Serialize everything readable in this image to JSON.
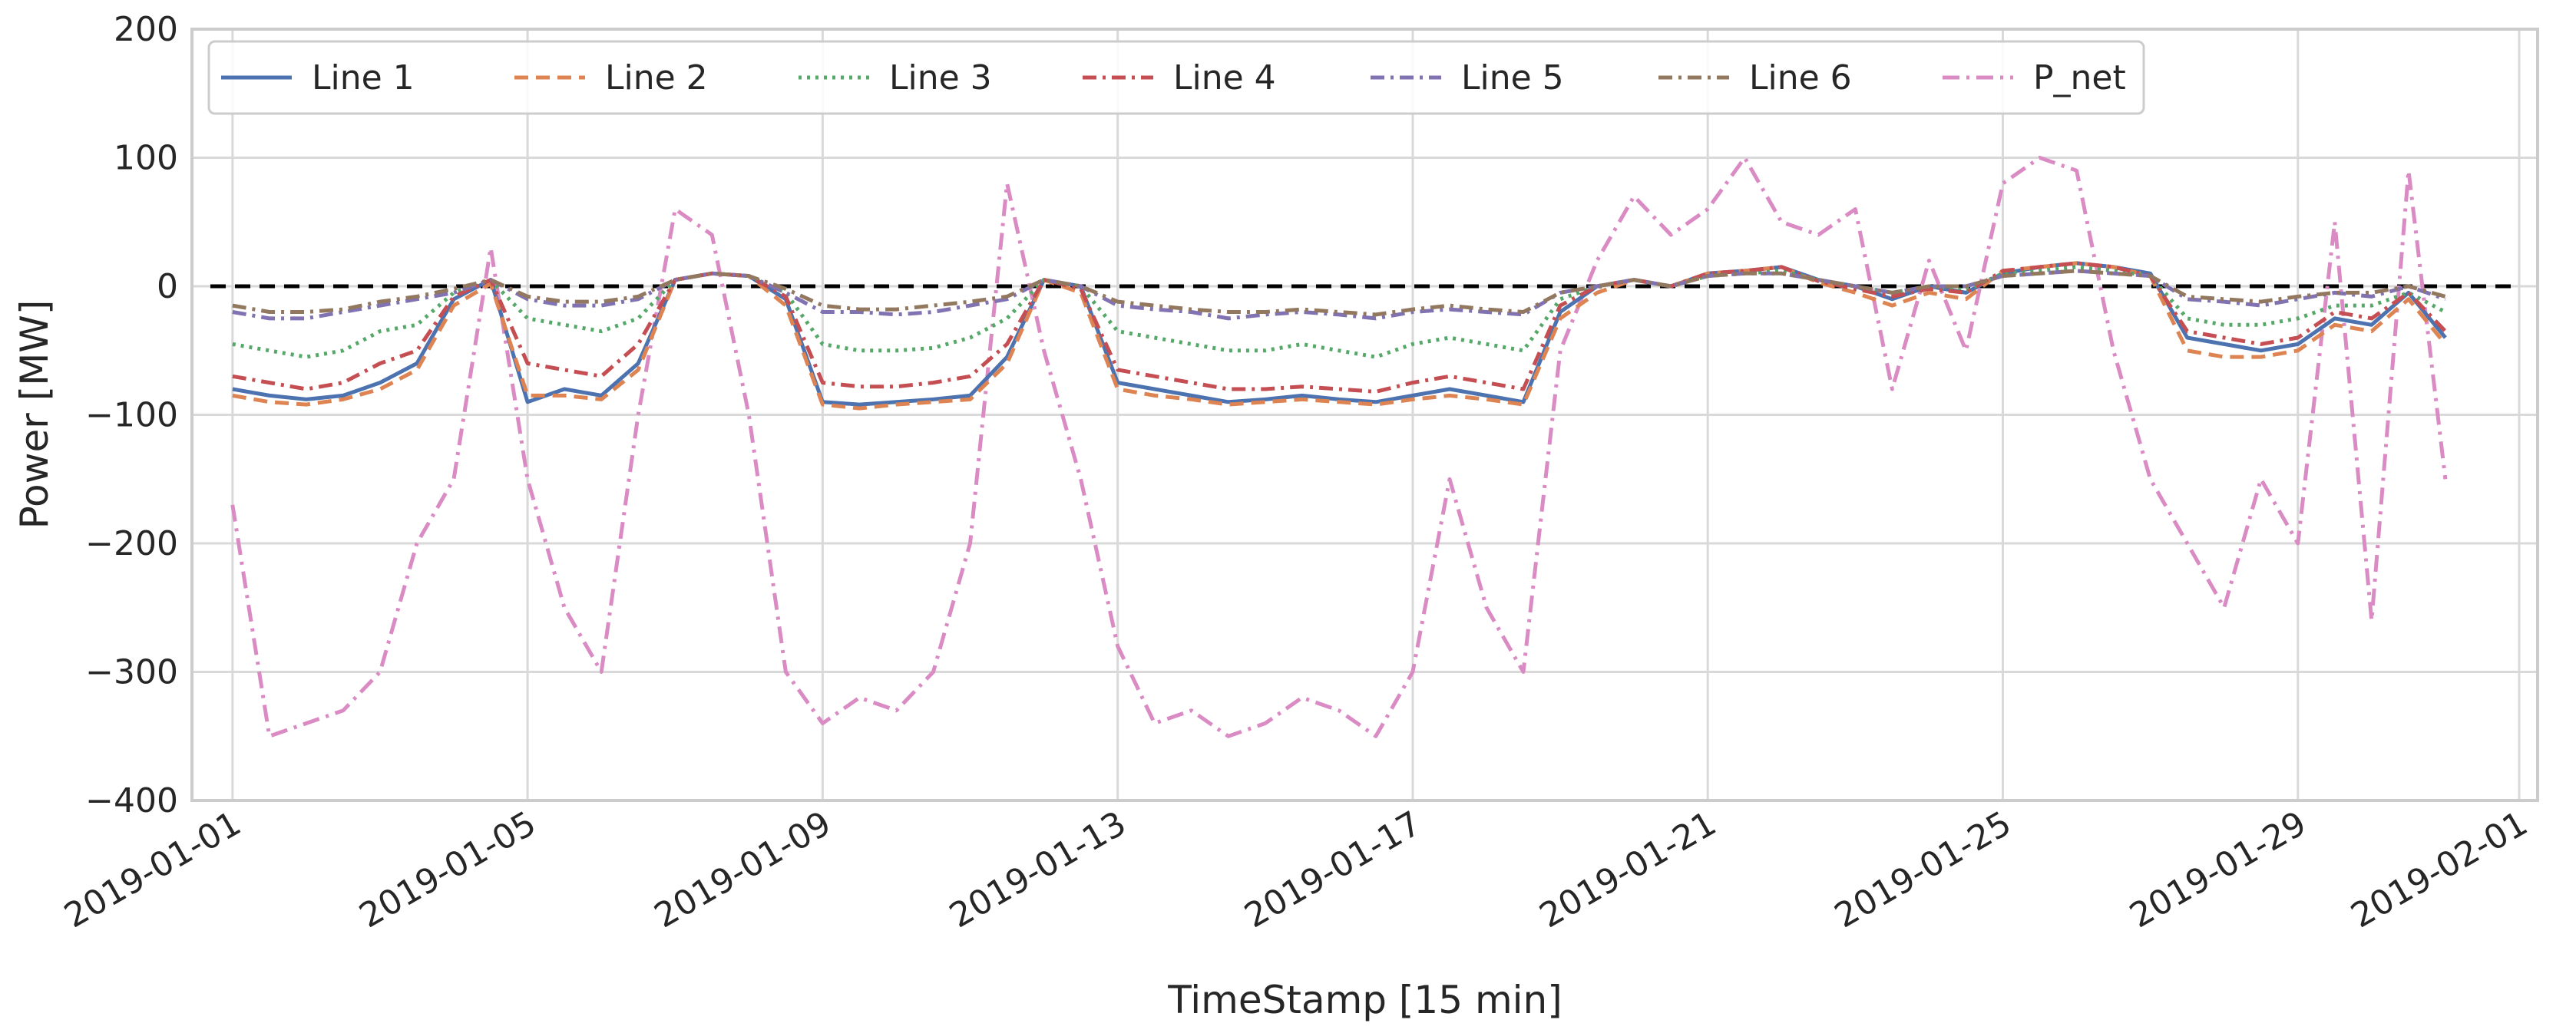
{
  "chart_data": {
    "type": "line",
    "xlabel": "TimeStamp [15 min]",
    "ylabel": "Power [MW]",
    "xlim": [
      -0.55,
      31.25
    ],
    "ylim": [
      -400,
      200
    ],
    "grid": true,
    "legend_position": "top-left",
    "x_ticks": [
      {
        "day": 0,
        "label": "2019-01-01"
      },
      {
        "day": 4,
        "label": "2019-01-05"
      },
      {
        "day": 8,
        "label": "2019-01-09"
      },
      {
        "day": 12,
        "label": "2019-01-13"
      },
      {
        "day": 16,
        "label": "2019-01-17"
      },
      {
        "day": 20,
        "label": "2019-01-21"
      },
      {
        "day": 24,
        "label": "2019-01-25"
      },
      {
        "day": 28,
        "label": "2019-01-29"
      },
      {
        "day": 31,
        "label": "2019-02-01"
      }
    ],
    "y_ticks": [
      {
        "value": 200,
        "label": "200"
      },
      {
        "value": 100,
        "label": "100"
      },
      {
        "value": 0,
        "label": "0"
      },
      {
        "value": -100,
        "label": "−100"
      },
      {
        "value": -200,
        "label": "−200"
      },
      {
        "value": -300,
        "label": "−300"
      },
      {
        "value": -400,
        "label": "−400"
      }
    ],
    "reference_line": {
      "y": 0,
      "style": "dashed",
      "color": "#000000"
    },
    "x_days": [
      0,
      0.5,
      1,
      1.5,
      2,
      2.5,
      3,
      3.5,
      4,
      4.5,
      5,
      5.5,
      6,
      6.5,
      7,
      7.5,
      8,
      8.5,
      9,
      9.5,
      10,
      10.5,
      11,
      11.5,
      12,
      12.5,
      13,
      13.5,
      14,
      14.5,
      15,
      15.5,
      16,
      16.5,
      17,
      17.5,
      18,
      18.5,
      19,
      19.5,
      20,
      20.5,
      21,
      21.5,
      22,
      22.5,
      23,
      23.5,
      24,
      24.5,
      25,
      25.5,
      26,
      26.5,
      27,
      27.5,
      28,
      28.5,
      29,
      29.5,
      30
    ],
    "series": [
      {
        "name": "Line 1",
        "color": "#4c72b0",
        "dash": "solid",
        "values": [
          -80,
          -85,
          -88,
          -85,
          -75,
          -60,
          -10,
          5,
          -90,
          -80,
          -85,
          -60,
          5,
          10,
          8,
          -10,
          -90,
          -92,
          -90,
          -88,
          -85,
          -55,
          5,
          0,
          -75,
          -80,
          -85,
          -90,
          -88,
          -85,
          -88,
          -90,
          -85,
          -80,
          -85,
          -90,
          -20,
          0,
          5,
          0,
          10,
          12,
          15,
          5,
          0,
          -10,
          0,
          -5,
          10,
          15,
          18,
          15,
          10,
          -40,
          -45,
          -50,
          -45,
          -25,
          -30,
          -5,
          -40
        ]
      },
      {
        "name": "Line 2",
        "color": "#dd8452",
        "dash": "18,10",
        "values": [
          -85,
          -90,
          -92,
          -88,
          -80,
          -65,
          -15,
          2,
          -85,
          -85,
          -88,
          -65,
          5,
          10,
          8,
          -15,
          -92,
          -95,
          -92,
          -90,
          -88,
          -60,
          5,
          -5,
          -80,
          -85,
          -88,
          -92,
          -90,
          -88,
          -90,
          -92,
          -88,
          -85,
          -88,
          -92,
          -25,
          -5,
          5,
          0,
          10,
          12,
          15,
          3,
          -5,
          -15,
          -5,
          -10,
          12,
          15,
          18,
          15,
          8,
          -50,
          -55,
          -55,
          -50,
          -30,
          -35,
          -10,
          -45
        ]
      },
      {
        "name": "Line 3",
        "color": "#55a868",
        "dash": "4,7",
        "values": [
          -45,
          -50,
          -55,
          -50,
          -35,
          -30,
          -5,
          5,
          -25,
          -30,
          -35,
          -25,
          5,
          10,
          8,
          -5,
          -45,
          -50,
          -50,
          -48,
          -40,
          -25,
          5,
          0,
          -35,
          -40,
          -45,
          -50,
          -50,
          -45,
          -50,
          -55,
          -45,
          -40,
          -45,
          -50,
          -10,
          0,
          5,
          0,
          8,
          10,
          12,
          5,
          0,
          -5,
          0,
          -3,
          10,
          12,
          15,
          12,
          8,
          -25,
          -30,
          -30,
          -25,
          -15,
          -15,
          -5,
          -20
        ]
      },
      {
        "name": "Line 4",
        "color": "#c44e52",
        "dash": "18,8,4,8",
        "values": [
          -70,
          -75,
          -80,
          -75,
          -60,
          -50,
          -8,
          5,
          -60,
          -65,
          -70,
          -45,
          5,
          10,
          8,
          -8,
          -75,
          -78,
          -78,
          -75,
          -70,
          -45,
          5,
          -2,
          -65,
          -70,
          -75,
          -80,
          -80,
          -78,
          -80,
          -82,
          -75,
          -70,
          -75,
          -80,
          -15,
          0,
          5,
          0,
          10,
          12,
          15,
          4,
          -2,
          -8,
          -2,
          -5,
          12,
          15,
          18,
          15,
          8,
          -35,
          -40,
          -45,
          -40,
          -20,
          -25,
          -5,
          -35
        ]
      },
      {
        "name": "Line 5",
        "color": "#8172b2",
        "dash": "18,8,4,8",
        "values": [
          -20,
          -25,
          -25,
          -20,
          -15,
          -10,
          -5,
          5,
          -10,
          -15,
          -15,
          -10,
          5,
          10,
          8,
          -5,
          -20,
          -20,
          -22,
          -20,
          -15,
          -10,
          5,
          0,
          -15,
          -18,
          -20,
          -25,
          -22,
          -20,
          -22,
          -25,
          -20,
          -18,
          -20,
          -22,
          -5,
          0,
          5,
          0,
          8,
          10,
          10,
          5,
          0,
          -5,
          0,
          0,
          8,
          10,
          12,
          10,
          8,
          -10,
          -12,
          -15,
          -10,
          -5,
          -8,
          0,
          -10
        ]
      },
      {
        "name": "Line 6",
        "color": "#937860",
        "dash": "18,8,4,8",
        "values": [
          -15,
          -20,
          -20,
          -18,
          -12,
          -8,
          -2,
          5,
          -8,
          -12,
          -12,
          -8,
          5,
          10,
          8,
          -2,
          -15,
          -18,
          -18,
          -15,
          -12,
          -8,
          5,
          0,
          -12,
          -15,
          -18,
          -20,
          -20,
          -18,
          -20,
          -22,
          -18,
          -15,
          -18,
          -20,
          -5,
          0,
          5,
          0,
          8,
          10,
          10,
          5,
          0,
          -5,
          0,
          0,
          8,
          10,
          12,
          10,
          8,
          -8,
          -10,
          -12,
          -8,
          -5,
          -5,
          0,
          -8
        ]
      },
      {
        "name": "P_net",
        "color": "#da8bc3",
        "dash": "22,9,4,9",
        "values": [
          -170,
          -350,
          -340,
          -330,
          -300,
          -200,
          -150,
          30,
          -150,
          -250,
          -300,
          -100,
          60,
          40,
          -100,
          -300,
          -340,
          -320,
          -330,
          -300,
          -200,
          80,
          -50,
          -150,
          -280,
          -340,
          -330,
          -350,
          -340,
          -320,
          -330,
          -350,
          -300,
          -150,
          -250,
          -300,
          -50,
          20,
          70,
          40,
          60,
          100,
          50,
          40,
          60,
          -80,
          20,
          -50,
          80,
          100,
          90,
          -50,
          -150,
          -200,
          -250,
          -150,
          -200,
          50,
          -260,
          90,
          -150
        ]
      }
    ]
  }
}
